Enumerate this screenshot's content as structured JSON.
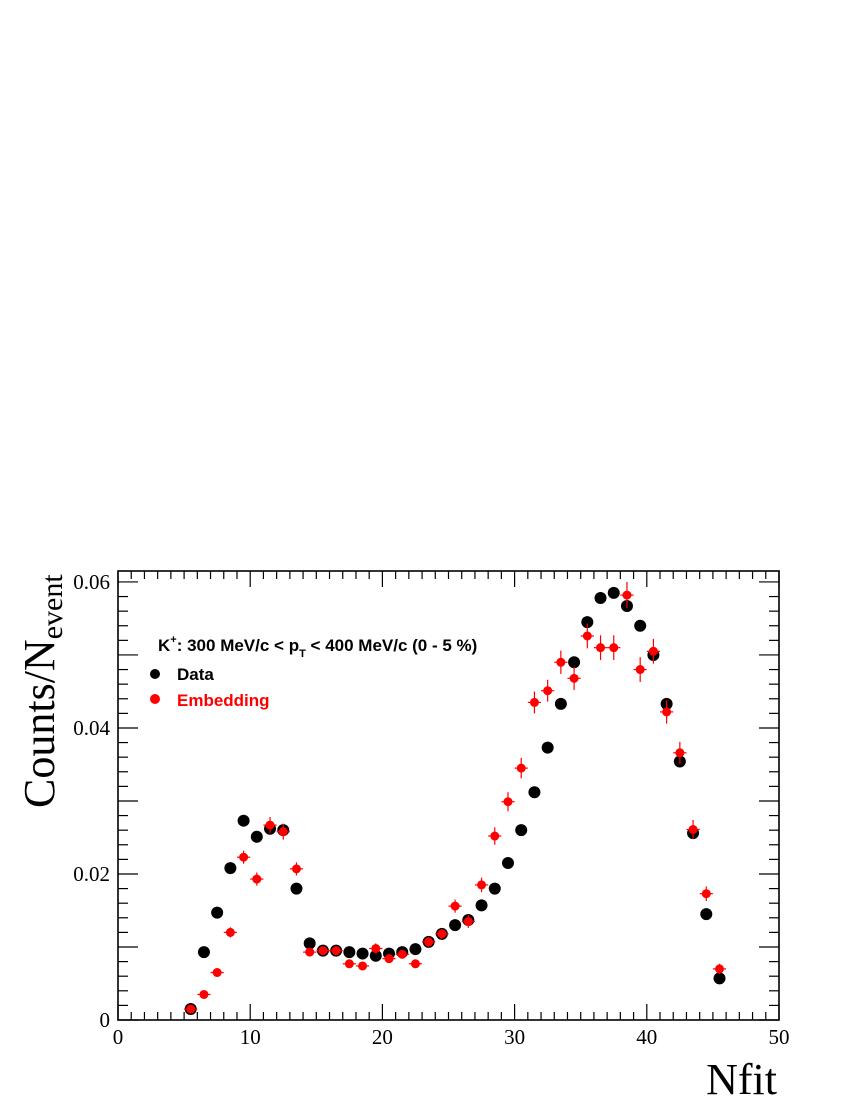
{
  "chart_data": {
    "type": "scatter",
    "xlabel": "Nfit",
    "ylabel": "Counts/N",
    "ylabel_sub": "event",
    "xlim": [
      0,
      50
    ],
    "ylim": [
      0,
      0.0615
    ],
    "x_ticks": [
      "0",
      "10",
      "20",
      "30",
      "40",
      "50"
    ],
    "y_ticks": [
      "0",
      "0.02",
      "0.04",
      "0.06"
    ],
    "annotation": {
      "particle": "K",
      "charge": "+",
      "pre": ": 300 MeV/c < p",
      "sub": "T",
      "post": " < 400 MeV/c (0 - 5 %)"
    },
    "legend_position": "top-left",
    "series": [
      {
        "name": "Data",
        "color": "#000000",
        "x": [
          5.5,
          6.5,
          7.5,
          8.5,
          9.5,
          10.5,
          11.5,
          12.5,
          13.5,
          14.5,
          15.5,
          16.5,
          17.5,
          18.5,
          19.5,
          20.5,
          21.5,
          22.5,
          23.5,
          24.5,
          25.5,
          26.5,
          27.5,
          28.5,
          29.5,
          30.5,
          31.5,
          32.5,
          33.5,
          34.5,
          35.5,
          36.5,
          37.5,
          38.5,
          39.5,
          40.5,
          41.5,
          42.5,
          43.5,
          44.5,
          45.5
        ],
        "y": [
          0.0015,
          0.0093,
          0.0147,
          0.0208,
          0.0273,
          0.0251,
          0.0262,
          0.026,
          0.018,
          0.0105,
          0.0095,
          0.0095,
          0.0093,
          0.0091,
          0.0088,
          0.0091,
          0.0093,
          0.0097,
          0.0107,
          0.0118,
          0.013,
          0.0137,
          0.0157,
          0.018,
          0.0215,
          0.026,
          0.0312,
          0.0373,
          0.0433,
          0.049,
          0.0545,
          0.0578,
          0.0585,
          0.0567,
          0.054,
          0.05,
          0.0433,
          0.0354,
          0.0256,
          0.0145,
          0.0057
        ],
        "yerr": [
          0.0002,
          0.0003,
          0.0003,
          0.0004,
          0.0004,
          0.0004,
          0.0004,
          0.0004,
          0.0003,
          0.0003,
          0.0003,
          0.0003,
          0.0003,
          0.0003,
          0.0003,
          0.0003,
          0.0003,
          0.0003,
          0.0003,
          0.0003,
          0.0003,
          0.0003,
          0.0003,
          0.0004,
          0.0004,
          0.0004,
          0.0004,
          0.0005,
          0.0005,
          0.0005,
          0.0006,
          0.0006,
          0.0006,
          0.0006,
          0.0006,
          0.0005,
          0.0005,
          0.0005,
          0.0004,
          0.0003,
          0.0002
        ]
      },
      {
        "name": "Embedding",
        "color": "#ff0000",
        "x": [
          5.5,
          6.5,
          7.5,
          8.5,
          9.5,
          10.5,
          11.5,
          12.5,
          13.5,
          14.5,
          15.5,
          16.5,
          17.5,
          18.5,
          19.5,
          20.5,
          21.5,
          22.5,
          23.5,
          24.5,
          25.5,
          26.5,
          27.5,
          28.5,
          29.5,
          30.5,
          31.5,
          32.5,
          33.5,
          34.5,
          35.5,
          36.5,
          37.5,
          38.5,
          39.5,
          40.5,
          41.5,
          42.5,
          43.5,
          44.5,
          45.5
        ],
        "y": [
          0.0015,
          0.0035,
          0.0065,
          0.012,
          0.0223,
          0.0193,
          0.0267,
          0.0258,
          0.0207,
          0.0093,
          0.0095,
          0.0095,
          0.0077,
          0.0074,
          0.0098,
          0.0084,
          0.009,
          0.0077,
          0.0107,
          0.0118,
          0.0156,
          0.0135,
          0.0185,
          0.0252,
          0.0299,
          0.0345,
          0.0435,
          0.0451,
          0.049,
          0.0468,
          0.0526,
          0.051,
          0.051,
          0.0582,
          0.048,
          0.0505,
          0.0422,
          0.0366,
          0.0261,
          0.0173,
          0.007
        ],
        "yerr": [
          0.0004,
          0.0004,
          0.0005,
          0.0007,
          0.0009,
          0.0009,
          0.0011,
          0.0011,
          0.0009,
          0.0006,
          0.0006,
          0.0006,
          0.0006,
          0.0006,
          0.0007,
          0.0006,
          0.0006,
          0.0006,
          0.0007,
          0.0007,
          0.0009,
          0.0009,
          0.001,
          0.0012,
          0.0013,
          0.0014,
          0.0015,
          0.0015,
          0.0016,
          0.0016,
          0.0017,
          0.0017,
          0.0017,
          0.0018,
          0.0017,
          0.0017,
          0.0016,
          0.0015,
          0.0013,
          0.001,
          0.0007
        ]
      }
    ]
  }
}
